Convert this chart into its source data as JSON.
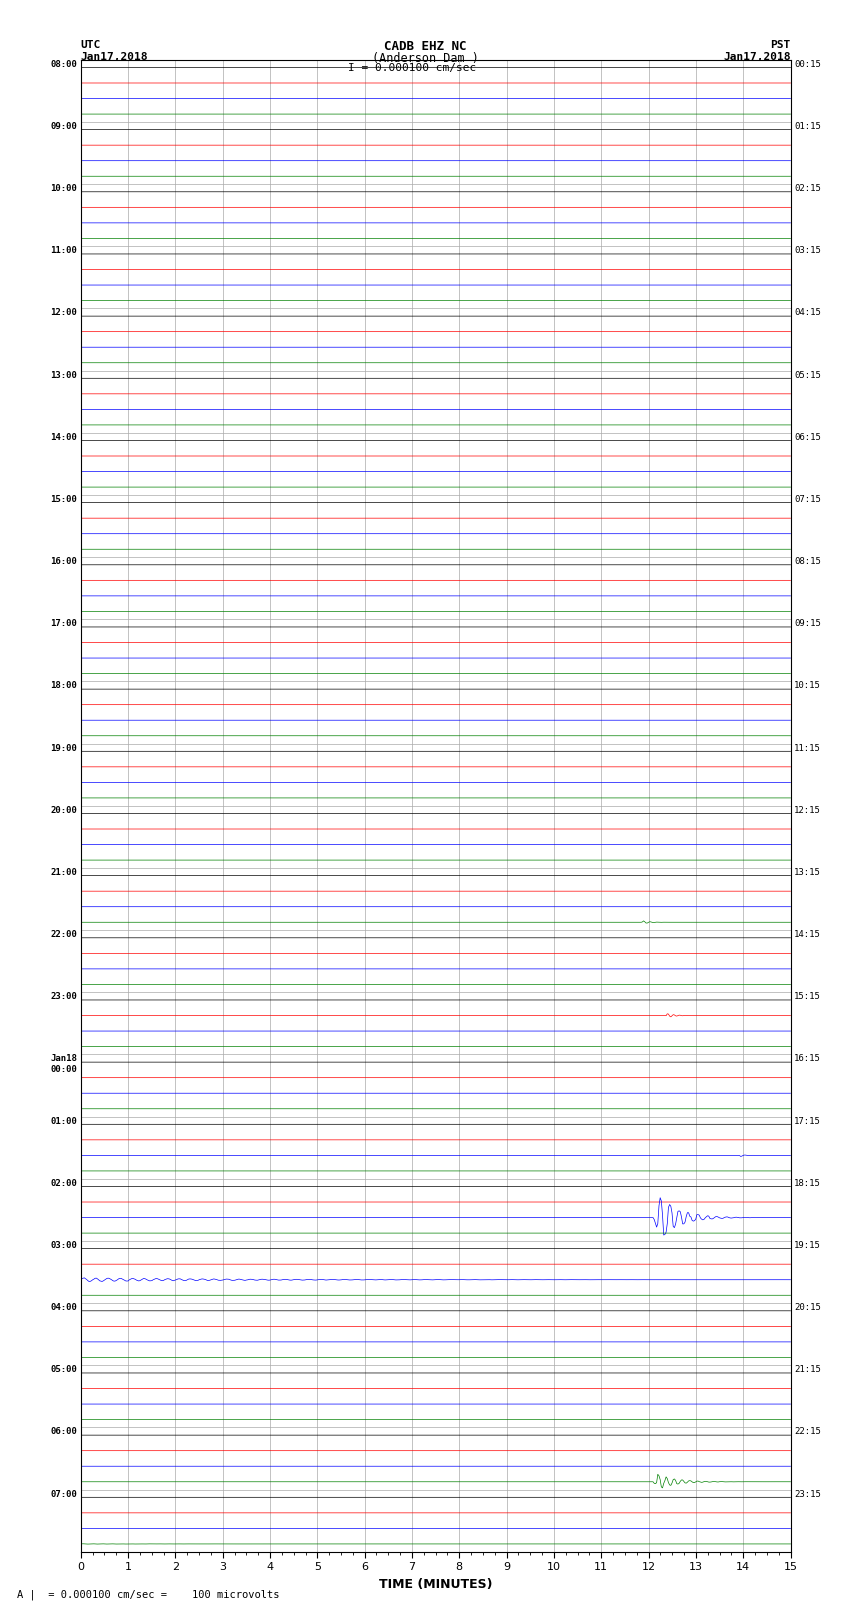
{
  "title_line1": "CADB EHZ NC",
  "title_line2": "(Anderson Dam )",
  "title_scale": "I = 0.000100 cm/sec",
  "label_left_top": "UTC",
  "label_left_date": "Jan17,2018",
  "label_right_top": "PST",
  "label_right_date": "Jan17,2018",
  "xlabel": "TIME (MINUTES)",
  "footnote": "A |  = 0.000100 cm/sec =    100 microvolts",
  "num_rows": 24,
  "minutes_per_row": 15,
  "colors": [
    "black",
    "red",
    "blue",
    "green"
  ],
  "noise_amp": 0.008,
  "bg_color": "white",
  "grid_color": "#aaaaaa",
  "fig_width": 8.5,
  "fig_height": 16.13,
  "dpi": 100,
  "left_labels_utc": [
    "08:00",
    "09:00",
    "10:00",
    "11:00",
    "12:00",
    "13:00",
    "14:00",
    "15:00",
    "16:00",
    "17:00",
    "18:00",
    "19:00",
    "20:00",
    "21:00",
    "22:00",
    "23:00",
    "Jan18\n00:00",
    "01:00",
    "02:00",
    "03:00",
    "04:00",
    "05:00",
    "06:00",
    "07:00"
  ],
  "right_labels_pst": [
    "00:15",
    "01:15",
    "02:15",
    "03:15",
    "04:15",
    "05:15",
    "06:15",
    "07:15",
    "08:15",
    "09:15",
    "10:15",
    "11:15",
    "12:15",
    "13:15",
    "14:15",
    "15:15",
    "16:15",
    "17:15",
    "18:15",
    "19:15",
    "20:15",
    "21:15",
    "22:15",
    "23:15"
  ],
  "earthquake_row_blue": 18,
  "earthquake_col_blue": 12.1,
  "earthquake_amp_blue": 0.35,
  "earthquake_row_green": 22,
  "earthquake_col_green": 12.1,
  "earthquake_amp_green": 0.13,
  "earthquake_row_red": 15,
  "earthquake_col_red": 12.35,
  "earthquake_amp_red": 0.035,
  "small_event_row_green": 13,
  "small_event_col_green": 11.85,
  "small_event_amp_green": 0.025,
  "small_event_row_blue2": 17,
  "small_event_col_blue2": 13.9,
  "small_event_amp_blue2": 0.02,
  "small_event_row_green3": 10,
  "small_event_col_green3": 0.5,
  "small_event_amp_green3": 0.012
}
